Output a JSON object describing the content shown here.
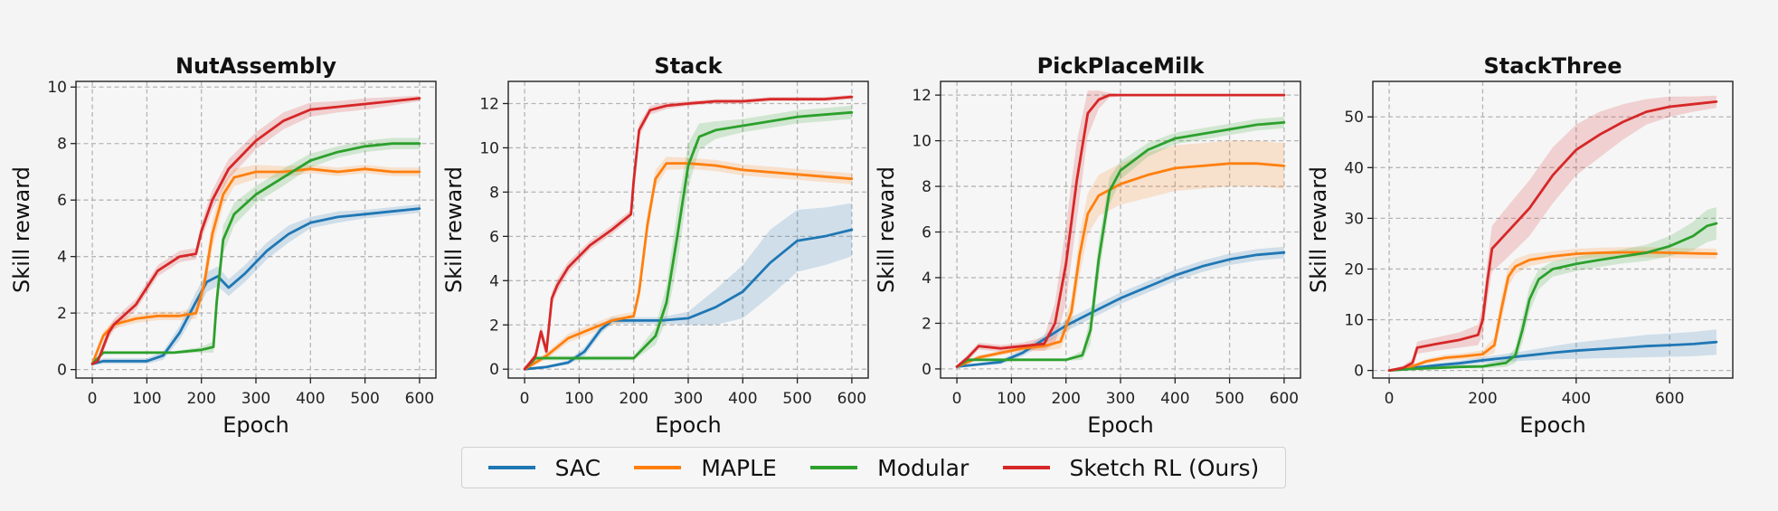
{
  "legend": {
    "items": [
      {
        "label": "SAC",
        "color": "#1f77b4"
      },
      {
        "label": "MAPLE",
        "color": "#ff7f0e"
      },
      {
        "label": "Modular",
        "color": "#2ca02c"
      },
      {
        "label": "Sketch RL (Ours)",
        "color": "#d62728"
      }
    ]
  },
  "chart_data": [
    {
      "type": "line",
      "title": "NutAssembly",
      "xlabel": "Epoch",
      "ylabel": "Skill reward",
      "xlim": [
        -30,
        630
      ],
      "ylim": [
        -0.3,
        10.2
      ],
      "xticks": [
        0,
        100,
        200,
        300,
        400,
        500,
        600
      ],
      "yticks": [
        0,
        2,
        4,
        6,
        8,
        10
      ],
      "grid": true,
      "series": [
        {
          "name": "SAC",
          "color": "#1f77b4",
          "x": [
            0,
            20,
            60,
            100,
            130,
            160,
            190,
            210,
            230,
            250,
            280,
            320,
            360,
            400,
            450,
            500,
            550,
            600
          ],
          "y": [
            0.2,
            0.3,
            0.3,
            0.3,
            0.5,
            1.3,
            2.4,
            3.1,
            3.3,
            2.9,
            3.4,
            4.2,
            4.8,
            5.2,
            5.4,
            5.5,
            5.6,
            5.7
          ],
          "band": [
            0.05,
            0.1,
            0.1,
            0.1,
            0.15,
            0.25,
            0.35,
            0.35,
            0.35,
            0.3,
            0.3,
            0.3,
            0.3,
            0.2,
            0.2,
            0.15,
            0.15,
            0.15
          ]
        },
        {
          "name": "MAPLE",
          "color": "#ff7f0e",
          "x": [
            0,
            20,
            40,
            80,
            120,
            160,
            190,
            205,
            220,
            240,
            260,
            300,
            350,
            400,
            450,
            500,
            550,
            600
          ],
          "y": [
            0.2,
            1.2,
            1.6,
            1.8,
            1.9,
            1.9,
            2.0,
            3.0,
            4.8,
            6.2,
            6.8,
            7.0,
            7.0,
            7.1,
            7.0,
            7.1,
            7.0,
            7.0
          ],
          "band": [
            0.05,
            0.15,
            0.15,
            0.15,
            0.15,
            0.15,
            0.2,
            0.4,
            0.5,
            0.4,
            0.3,
            0.25,
            0.2,
            0.15,
            0.15,
            0.15,
            0.15,
            0.15
          ]
        },
        {
          "name": "Modular",
          "color": "#2ca02c",
          "x": [
            0,
            20,
            60,
            100,
            150,
            200,
            222,
            228,
            240,
            260,
            300,
            350,
            400,
            450,
            500,
            550,
            600
          ],
          "y": [
            0.2,
            0.6,
            0.6,
            0.6,
            0.6,
            0.7,
            0.8,
            2.4,
            4.6,
            5.5,
            6.2,
            6.8,
            7.4,
            7.7,
            7.9,
            8.0,
            8.0
          ],
          "band": [
            0.05,
            0.05,
            0.05,
            0.05,
            0.05,
            0.1,
            0.2,
            0.5,
            0.5,
            0.4,
            0.3,
            0.3,
            0.25,
            0.2,
            0.2,
            0.2,
            0.2
          ]
        },
        {
          "name": "Sketch RL (Ours)",
          "color": "#d62728",
          "x": [
            0,
            10,
            20,
            30,
            40,
            80,
            120,
            160,
            190,
            200,
            220,
            250,
            300,
            350,
            400,
            450,
            500,
            550,
            600
          ],
          "y": [
            0.2,
            0.3,
            0.8,
            1.3,
            1.6,
            2.3,
            3.5,
            4.0,
            4.1,
            4.9,
            6.0,
            7.1,
            8.1,
            8.8,
            9.2,
            9.3,
            9.4,
            9.5,
            9.6
          ],
          "band": [
            0.05,
            0.1,
            0.2,
            0.2,
            0.2,
            0.2,
            0.2,
            0.2,
            0.2,
            0.3,
            0.35,
            0.35,
            0.3,
            0.3,
            0.25,
            0.2,
            0.2,
            0.15,
            0.1
          ]
        }
      ]
    },
    {
      "type": "line",
      "title": "Stack",
      "xlabel": "Epoch",
      "ylabel": "Skill reward",
      "xlim": [
        -30,
        630
      ],
      "ylim": [
        -0.4,
        13.0
      ],
      "xticks": [
        0,
        100,
        200,
        300,
        400,
        500,
        600
      ],
      "yticks": [
        0,
        2,
        4,
        6,
        8,
        10,
        12
      ],
      "grid": true,
      "series": [
        {
          "name": "SAC",
          "color": "#1f77b4",
          "x": [
            0,
            40,
            80,
            110,
            140,
            160,
            200,
            250,
            300,
            350,
            400,
            450,
            500,
            550,
            600
          ],
          "y": [
            0.0,
            0.1,
            0.3,
            0.8,
            1.8,
            2.2,
            2.2,
            2.2,
            2.3,
            2.8,
            3.5,
            4.8,
            5.8,
            6.0,
            6.3
          ],
          "band": [
            0.05,
            0.05,
            0.1,
            0.2,
            0.2,
            0.15,
            0.15,
            0.15,
            0.3,
            0.8,
            1.2,
            1.5,
            1.4,
            1.3,
            1.2
          ]
        },
        {
          "name": "MAPLE",
          "color": "#ff7f0e",
          "x": [
            0,
            40,
            80,
            120,
            160,
            200,
            210,
            225,
            240,
            260,
            300,
            350,
            400,
            450,
            500,
            550,
            600
          ],
          "y": [
            0.0,
            0.6,
            1.4,
            1.8,
            2.2,
            2.4,
            3.5,
            6.5,
            8.6,
            9.3,
            9.3,
            9.2,
            9.0,
            8.9,
            8.8,
            8.7,
            8.6
          ],
          "band": [
            0.05,
            0.15,
            0.2,
            0.2,
            0.2,
            0.2,
            0.4,
            0.5,
            0.4,
            0.3,
            0.25,
            0.25,
            0.25,
            0.25,
            0.25,
            0.25,
            0.25
          ]
        },
        {
          "name": "Modular",
          "color": "#2ca02c",
          "x": [
            0,
            20,
            60,
            100,
            150,
            200,
            240,
            260,
            280,
            300,
            320,
            350,
            400,
            450,
            500,
            550,
            600
          ],
          "y": [
            0.0,
            0.5,
            0.5,
            0.5,
            0.5,
            0.5,
            1.5,
            3.0,
            6.0,
            9.2,
            10.5,
            10.8,
            11.0,
            11.2,
            11.4,
            11.5,
            11.6
          ],
          "band": [
            0.05,
            0.1,
            0.1,
            0.1,
            0.1,
            0.1,
            0.4,
            0.8,
            1.2,
            1.0,
            0.6,
            0.4,
            0.3,
            0.3,
            0.3,
            0.3,
            0.3
          ]
        },
        {
          "name": "Sketch RL (Ours)",
          "color": "#d62728",
          "x": [
            0,
            20,
            30,
            40,
            50,
            60,
            80,
            120,
            160,
            195,
            200,
            210,
            230,
            260,
            300,
            350,
            400,
            450,
            500,
            550,
            600
          ],
          "y": [
            0.0,
            0.6,
            1.7,
            0.8,
            3.2,
            3.8,
            4.6,
            5.6,
            6.3,
            7.0,
            8.5,
            10.8,
            11.7,
            11.9,
            12.0,
            12.1,
            12.1,
            12.2,
            12.2,
            12.2,
            12.3
          ],
          "band": [
            0.05,
            0.2,
            0.3,
            0.3,
            0.3,
            0.3,
            0.25,
            0.2,
            0.2,
            0.2,
            0.4,
            0.3,
            0.2,
            0.15,
            0.1,
            0.1,
            0.1,
            0.1,
            0.1,
            0.1,
            0.1
          ]
        }
      ]
    },
    {
      "type": "line",
      "title": "PickPlaceMilk",
      "xlabel": "Epoch",
      "ylabel": "Skill reward",
      "xlim": [
        -30,
        630
      ],
      "ylim": [
        -0.4,
        12.6
      ],
      "xticks": [
        0,
        100,
        200,
        300,
        400,
        500,
        600
      ],
      "yticks": [
        0,
        2,
        4,
        6,
        8,
        10,
        12
      ],
      "grid": true,
      "series": [
        {
          "name": "SAC",
          "color": "#1f77b4",
          "x": [
            0,
            40,
            80,
            120,
            160,
            200,
            250,
            300,
            350,
            400,
            450,
            500,
            550,
            600
          ],
          "y": [
            0.1,
            0.2,
            0.3,
            0.7,
            1.3,
            1.9,
            2.5,
            3.1,
            3.6,
            4.1,
            4.5,
            4.8,
            5.0,
            5.1
          ],
          "band": [
            0.05,
            0.05,
            0.1,
            0.15,
            0.2,
            0.25,
            0.25,
            0.25,
            0.25,
            0.25,
            0.25,
            0.25,
            0.25,
            0.25
          ]
        },
        {
          "name": "MAPLE",
          "color": "#ff7f0e",
          "x": [
            0,
            40,
            80,
            120,
            160,
            190,
            210,
            225,
            240,
            260,
            300,
            350,
            400,
            450,
            500,
            550,
            600
          ],
          "y": [
            0.1,
            0.5,
            0.7,
            0.9,
            1.0,
            1.2,
            2.5,
            5.0,
            6.8,
            7.6,
            8.1,
            8.5,
            8.8,
            8.9,
            9.0,
            9.0,
            8.9
          ],
          "band": [
            0.05,
            0.1,
            0.1,
            0.15,
            0.2,
            0.3,
            0.6,
            0.9,
            0.9,
            0.9,
            0.9,
            1.0,
            1.0,
            1.0,
            1.0,
            1.0,
            1.0
          ]
        },
        {
          "name": "Modular",
          "color": "#2ca02c",
          "x": [
            0,
            20,
            60,
            100,
            150,
            200,
            230,
            245,
            260,
            280,
            300,
            350,
            400,
            450,
            500,
            550,
            600
          ],
          "y": [
            0.1,
            0.4,
            0.4,
            0.4,
            0.4,
            0.4,
            0.6,
            1.7,
            4.8,
            7.8,
            8.7,
            9.6,
            10.1,
            10.3,
            10.5,
            10.7,
            10.8
          ],
          "band": [
            0.05,
            0.05,
            0.05,
            0.05,
            0.05,
            0.05,
            0.2,
            0.6,
            0.8,
            0.6,
            0.4,
            0.3,
            0.25,
            0.25,
            0.25,
            0.25,
            0.25
          ]
        },
        {
          "name": "Sketch RL (Ours)",
          "color": "#d62728",
          "x": [
            0,
            20,
            40,
            80,
            120,
            160,
            180,
            200,
            220,
            240,
            260,
            280,
            300,
            350,
            400,
            450,
            500,
            550,
            600
          ],
          "y": [
            0.1,
            0.5,
            1.0,
            0.9,
            1.0,
            1.1,
            2.0,
            4.6,
            8.3,
            11.2,
            11.8,
            12.0,
            12.0,
            12.0,
            12.0,
            12.0,
            12.0,
            12.0,
            12.0
          ],
          "band": [
            0.05,
            0.15,
            0.15,
            0.15,
            0.15,
            0.3,
            0.9,
            1.7,
            1.7,
            1.0,
            0.4,
            0.1,
            0.05,
            0.05,
            0.05,
            0.05,
            0.05,
            0.05,
            0.05
          ]
        }
      ]
    },
    {
      "type": "line",
      "title": "StackThree",
      "xlabel": "Epoch",
      "ylabel": "Skill reward",
      "xlim": [
        -35,
        735
      ],
      "ylim": [
        -1.5,
        57.0
      ],
      "xticks": [
        0,
        200,
        400,
        600
      ],
      "yticks": [
        0,
        10,
        20,
        30,
        40,
        50
      ],
      "grid": true,
      "series": [
        {
          "name": "SAC",
          "color": "#1f77b4",
          "x": [
            0,
            50,
            100,
            150,
            200,
            250,
            300,
            350,
            400,
            450,
            500,
            550,
            600,
            650,
            700
          ],
          "y": [
            0.0,
            0.5,
            1.0,
            1.4,
            2.0,
            2.5,
            3.0,
            3.5,
            3.9,
            4.2,
            4.5,
            4.8,
            5.0,
            5.2,
            5.6
          ],
          "band": [
            0.1,
            0.3,
            0.4,
            0.5,
            0.6,
            0.8,
            1.0,
            1.3,
            1.6,
            1.8,
            2.0,
            2.2,
            2.3,
            2.4,
            2.5
          ]
        },
        {
          "name": "MAPLE",
          "color": "#ff7f0e",
          "x": [
            0,
            40,
            80,
            120,
            160,
            200,
            225,
            240,
            255,
            270,
            300,
            350,
            400,
            450,
            500,
            550,
            600,
            650,
            700
          ],
          "y": [
            0.0,
            0.5,
            1.8,
            2.5,
            2.8,
            3.2,
            5.0,
            12.0,
            18.5,
            20.5,
            21.8,
            22.5,
            23.0,
            23.2,
            23.3,
            23.3,
            23.2,
            23.1,
            23.0
          ],
          "band": [
            0.1,
            0.3,
            0.5,
            0.6,
            0.6,
            0.8,
            1.5,
            2.5,
            2.0,
            1.5,
            1.2,
            1.0,
            1.0,
            1.0,
            1.0,
            1.0,
            1.0,
            1.0,
            1.0
          ]
        },
        {
          "name": "Modular",
          "color": "#2ca02c",
          "x": [
            0,
            50,
            100,
            150,
            200,
            250,
            270,
            285,
            300,
            320,
            350,
            400,
            450,
            500,
            550,
            600,
            650,
            680,
            700
          ],
          "y": [
            0.0,
            0.3,
            0.5,
            0.7,
            0.8,
            1.5,
            3.0,
            8.0,
            14.0,
            18.0,
            20.0,
            21.0,
            21.8,
            22.5,
            23.2,
            24.5,
            26.5,
            28.5,
            29.0
          ],
          "band": [
            0.1,
            0.2,
            0.3,
            0.3,
            0.4,
            0.8,
            1.5,
            2.5,
            2.5,
            2.0,
            1.5,
            1.4,
            1.4,
            1.4,
            1.6,
            2.0,
            2.8,
            3.2,
            3.2
          ]
        },
        {
          "name": "Sketch RL (Ours)",
          "color": "#d62728",
          "x": [
            0,
            30,
            50,
            60,
            100,
            150,
            190,
            200,
            210,
            220,
            250,
            300,
            350,
            400,
            450,
            500,
            550,
            600,
            650,
            700
          ],
          "y": [
            0.0,
            0.5,
            1.5,
            4.5,
            5.2,
            6.0,
            7.0,
            10.0,
            17.5,
            24.0,
            27.0,
            32.0,
            38.5,
            43.5,
            46.5,
            49.0,
            51.0,
            52.0,
            52.5,
            53.0
          ],
          "band": [
            0.1,
            0.5,
            0.8,
            1.2,
            1.3,
            1.5,
            2.0,
            3.0,
            4.0,
            4.5,
            5.0,
            5.5,
            5.5,
            5.0,
            4.5,
            3.5,
            2.5,
            2.0,
            1.5,
            1.2
          ]
        }
      ]
    }
  ]
}
